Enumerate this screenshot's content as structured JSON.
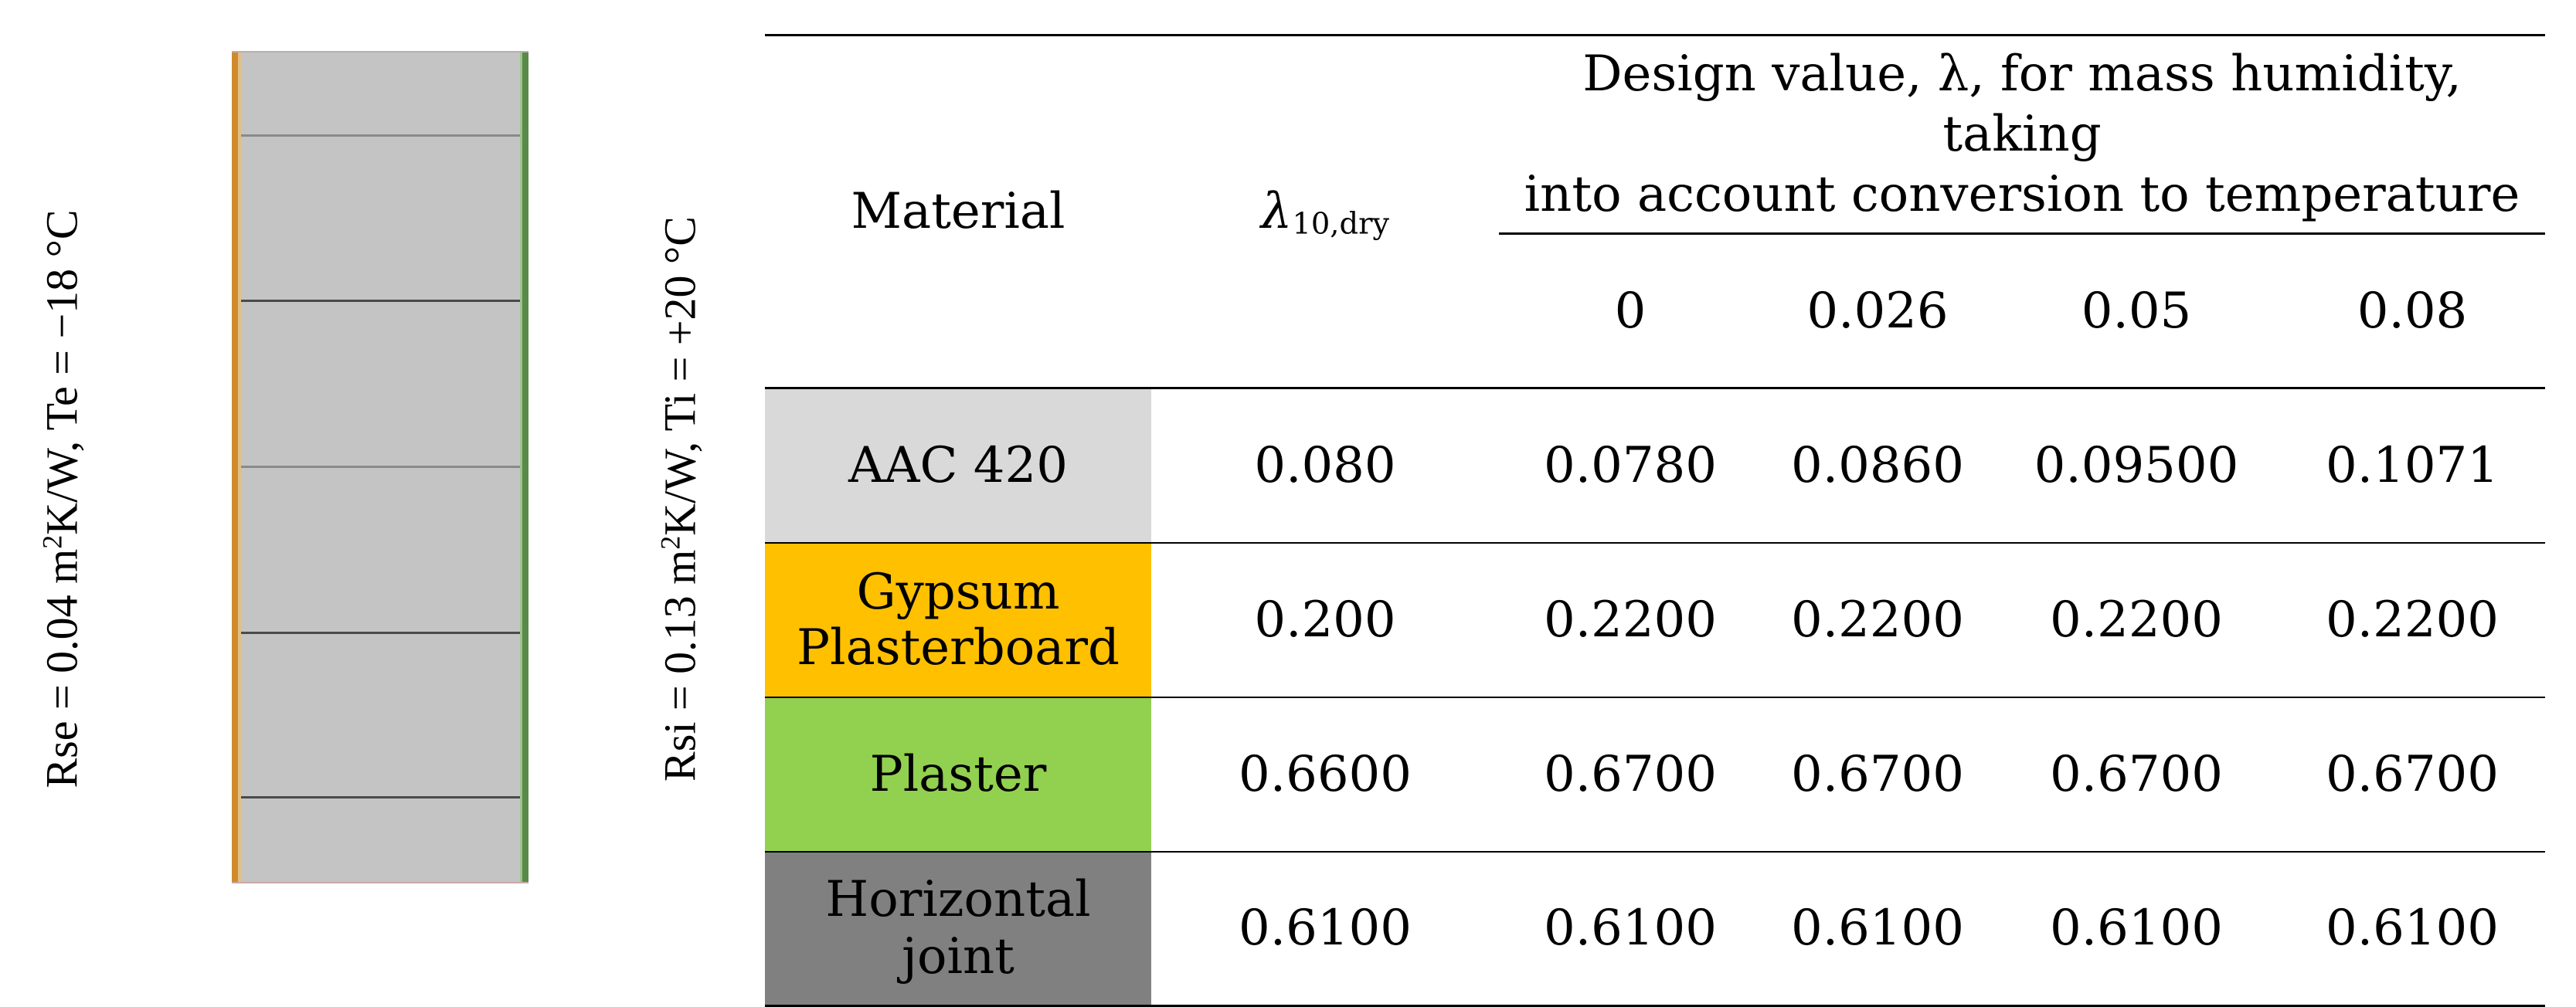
{
  "labels": {
    "exterior": "Rse = 0.04 m²K/W, Te = −18 °C",
    "interior": "Rsi = 0.13 m²K/W, Ti = +20 °C"
  },
  "table": {
    "header_material": "Material",
    "header_lambda_symbol": "λ",
    "header_lambda_sub": "10,dry",
    "header_design_line1": "Design value, λ, for mass humidity, taking",
    "header_design_line2": "into account conversion to temperature",
    "humidity_values": [
      "0",
      "0.026",
      "0.05",
      "0.08"
    ],
    "rows": [
      {
        "material": "AAC 420",
        "color": "#d9d9d9",
        "lambda_dry": "0.080",
        "values": [
          "0.0780",
          "0.0860",
          "0.09500",
          "0.1071"
        ]
      },
      {
        "material": "Gypsum Plasterboard",
        "line1": "Gypsum",
        "line2": "Plasterboard",
        "color": "#ffc000",
        "lambda_dry": "0.200",
        "values": [
          "0.2200",
          "0.2200",
          "0.2200",
          "0.2200"
        ]
      },
      {
        "material": "Plaster",
        "color": "#92d050",
        "lambda_dry": "0.6600",
        "values": [
          "0.6700",
          "0.6700",
          "0.6700",
          "0.6700"
        ]
      },
      {
        "material": "Horizontal joint",
        "color": "#808080",
        "lambda_dry": "0.6100",
        "values": [
          "0.6100",
          "0.6100",
          "0.6100",
          "0.6100"
        ]
      }
    ]
  }
}
